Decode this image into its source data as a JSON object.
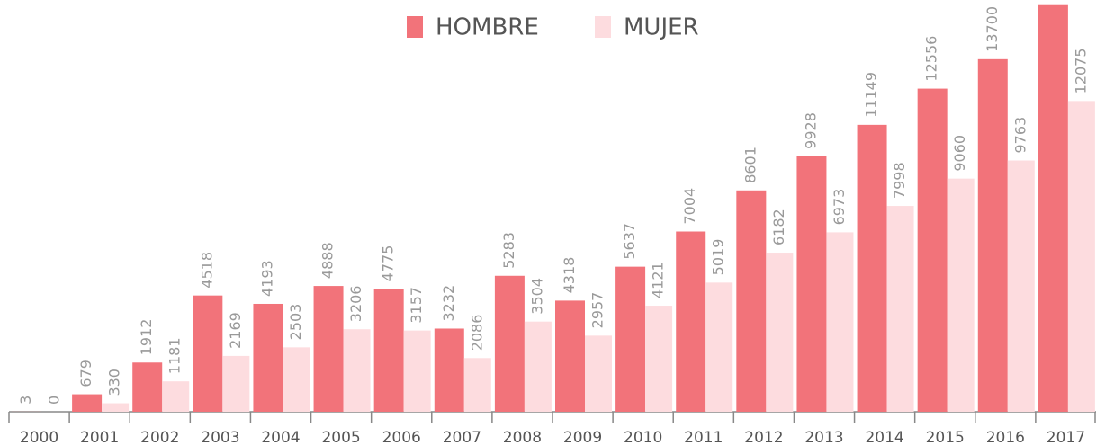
{
  "chart_data": {
    "type": "bar",
    "categories": [
      "2000",
      "2001",
      "2002",
      "2003",
      "2004",
      "2005",
      "2006",
      "2007",
      "2008",
      "2009",
      "2010",
      "2011",
      "2012",
      "2013",
      "2014",
      "2015",
      "2016",
      "2017"
    ],
    "series": [
      {
        "name": "HOMBRE",
        "color": "#f2737a",
        "values": [
          3,
          679,
          1912,
          4518,
          4193,
          4888,
          4775,
          3232,
          5283,
          4318,
          5637,
          7004,
          8601,
          9928,
          11149,
          12556,
          13700,
          15800
        ]
      },
      {
        "name": "MUJER",
        "color": "#fddcdf",
        "values": [
          0,
          330,
          1181,
          2169,
          2503,
          3206,
          3157,
          2086,
          3504,
          2957,
          4121,
          5019,
          6182,
          6973,
          7998,
          9060,
          9763,
          12075
        ]
      }
    ],
    "ylim": [
      0,
      16000
    ],
    "legend": "top"
  }
}
